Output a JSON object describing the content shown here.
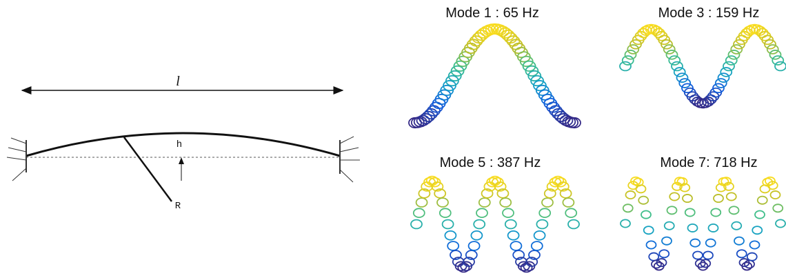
{
  "diagram": {
    "length_label": "l",
    "height_label": "h",
    "radius_label": "R"
  },
  "modes": [
    {
      "title": "Mode 1 : 65 Hz"
    },
    {
      "title": "Mode 3 : 159 Hz"
    },
    {
      "title": "Mode 5 : 387 Hz"
    },
    {
      "title": "Mode 7: 718 Hz"
    }
  ]
}
